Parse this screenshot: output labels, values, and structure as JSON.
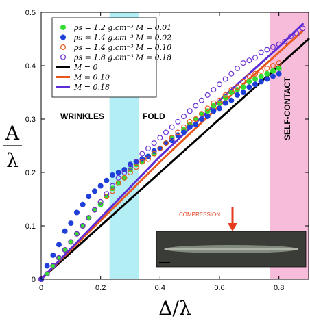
{
  "chart_data": {
    "type": "scatter",
    "xlabel": "Δ/λ",
    "ylabel": "A/λ",
    "xlim": [
      0,
      0.9
    ],
    "ylim": [
      0,
      0.5
    ],
    "xticks": [
      "0",
      "0.2",
      "0.4",
      "0.6",
      "0.8"
    ],
    "yticks": [
      "0",
      "0.1",
      "0.2",
      "0.3",
      "0.4",
      "0.5"
    ],
    "regions": [
      {
        "label": "WRINKLES",
        "color": "#a8ecf2"
      },
      {
        "label": "FOLD",
        "color": "#a8ecf2"
      },
      {
        "label": "SELF-CONTACT",
        "color": "#f7b6d6"
      }
    ],
    "shaded_bands": [
      {
        "name": "fold-band",
        "x": [
          0.23,
          0.33
        ],
        "color": "#b2eef4"
      },
      {
        "name": "self-contact-band",
        "x": [
          0.77,
          0.9
        ],
        "color": "#f7bcd9"
      }
    ],
    "inset_label": "COMPRESSION",
    "legend_position": "top-left",
    "grid": false,
    "series": [
      {
        "name": "ρs = 1.2 g.cm⁻³   M = 0.01",
        "kind": "marker",
        "filled": true,
        "color": "#33dd33",
        "x": [
          0.0,
          0.02,
          0.04,
          0.06,
          0.08,
          0.1,
          0.12,
          0.14,
          0.16,
          0.18,
          0.2,
          0.22,
          0.24,
          0.26,
          0.28,
          0.3,
          0.32,
          0.34,
          0.36,
          0.38,
          0.4,
          0.42,
          0.44,
          0.46,
          0.48,
          0.5,
          0.52,
          0.54,
          0.56,
          0.58,
          0.6,
          0.62,
          0.64,
          0.66,
          0.68,
          0.7,
          0.72,
          0.74,
          0.76,
          0.78,
          0.8
        ],
        "y": [
          0.0,
          0.01,
          0.025,
          0.04,
          0.055,
          0.07,
          0.085,
          0.1,
          0.115,
          0.13,
          0.14,
          0.155,
          0.17,
          0.18,
          0.19,
          0.205,
          0.215,
          0.22,
          0.23,
          0.235,
          0.245,
          0.255,
          0.265,
          0.27,
          0.28,
          0.29,
          0.3,
          0.31,
          0.315,
          0.325,
          0.33,
          0.34,
          0.35,
          0.355,
          0.36,
          0.37,
          0.375,
          0.38,
          0.385,
          0.39,
          0.395
        ]
      },
      {
        "name": "ρs = 1.4 g.cm⁻³   M = 0.02",
        "kind": "marker",
        "filled": true,
        "color": "#1f3fd9",
        "x": [
          0.0,
          0.02,
          0.04,
          0.06,
          0.08,
          0.1,
          0.12,
          0.14,
          0.16,
          0.18,
          0.2,
          0.22,
          0.24,
          0.26,
          0.28,
          0.3,
          0.32,
          0.34,
          0.36,
          0.38,
          0.4,
          0.42,
          0.44,
          0.46,
          0.48,
          0.5,
          0.52,
          0.54,
          0.56,
          0.58,
          0.6,
          0.62,
          0.64,
          0.66,
          0.68,
          0.7,
          0.72,
          0.74,
          0.76,
          0.78,
          0.8
        ],
        "y": [
          0.0,
          0.025,
          0.045,
          0.065,
          0.09,
          0.105,
          0.125,
          0.14,
          0.155,
          0.165,
          0.175,
          0.185,
          0.195,
          0.2,
          0.205,
          0.215,
          0.22,
          0.225,
          0.23,
          0.24,
          0.245,
          0.255,
          0.26,
          0.27,
          0.275,
          0.285,
          0.29,
          0.3,
          0.305,
          0.315,
          0.32,
          0.33,
          0.335,
          0.345,
          0.35,
          0.36,
          0.365,
          0.37,
          0.375,
          0.38,
          0.385
        ]
      },
      {
        "name": "ρs = 1.4 g.cm⁻³   M = 0.10",
        "kind": "marker",
        "filled": false,
        "color": "#e8581e",
        "x": [
          0.0,
          0.02,
          0.04,
          0.06,
          0.08,
          0.1,
          0.12,
          0.14,
          0.16,
          0.18,
          0.2,
          0.22,
          0.24,
          0.26,
          0.28,
          0.3,
          0.32,
          0.34,
          0.36,
          0.38,
          0.4,
          0.42,
          0.44,
          0.46,
          0.48,
          0.5,
          0.52,
          0.54,
          0.56,
          0.58,
          0.6,
          0.62,
          0.64,
          0.66,
          0.68,
          0.7,
          0.72,
          0.74,
          0.76,
          0.78,
          0.8
        ],
        "y": [
          0.0,
          0.01,
          0.025,
          0.04,
          0.055,
          0.07,
          0.085,
          0.1,
          0.115,
          0.13,
          0.145,
          0.155,
          0.165,
          0.18,
          0.19,
          0.2,
          0.21,
          0.22,
          0.225,
          0.235,
          0.245,
          0.255,
          0.265,
          0.275,
          0.285,
          0.295,
          0.3,
          0.31,
          0.32,
          0.33,
          0.335,
          0.345,
          0.355,
          0.36,
          0.37,
          0.38,
          0.385,
          0.39,
          0.395,
          0.4,
          0.405
        ]
      },
      {
        "name": "ρs = 1.8 g.cm⁻³   M = 0.18",
        "kind": "marker",
        "filled": false,
        "color": "#6a2fd1",
        "x": [
          0.0,
          0.02,
          0.04,
          0.06,
          0.08,
          0.1,
          0.12,
          0.14,
          0.16,
          0.18,
          0.2,
          0.22,
          0.24,
          0.26,
          0.28,
          0.3,
          0.32,
          0.34,
          0.36,
          0.38,
          0.4,
          0.42,
          0.44,
          0.46,
          0.48,
          0.5,
          0.52,
          0.54,
          0.56,
          0.58,
          0.6,
          0.62,
          0.64,
          0.66,
          0.68,
          0.7,
          0.72,
          0.74,
          0.76,
          0.78,
          0.8,
          0.82,
          0.84,
          0.86,
          0.88
        ],
        "y": [
          0.0,
          0.01,
          0.025,
          0.04,
          0.055,
          0.07,
          0.085,
          0.1,
          0.115,
          0.13,
          0.145,
          0.16,
          0.175,
          0.19,
          0.2,
          0.21,
          0.22,
          0.235,
          0.245,
          0.255,
          0.265,
          0.275,
          0.285,
          0.295,
          0.305,
          0.315,
          0.325,
          0.335,
          0.345,
          0.355,
          0.365,
          0.375,
          0.385,
          0.395,
          0.405,
          0.41,
          0.415,
          0.425,
          0.43,
          0.435,
          0.44,
          0.445,
          0.455,
          0.46,
          0.47
        ]
      },
      {
        "name": "M = 0",
        "kind": "line",
        "color": "#000000",
        "x": [
          0.0,
          0.9
        ],
        "y": [
          0.0,
          0.45
        ]
      },
      {
        "name": "M = 0.10",
        "kind": "line",
        "color": "#e8581e",
        "x": [
          0.0,
          0.2,
          0.4,
          0.6,
          0.8,
          0.88
        ],
        "y": [
          0.0,
          0.11,
          0.22,
          0.325,
          0.425,
          0.465
        ]
      },
      {
        "name": "M = 0.18",
        "kind": "line",
        "color": "#5b2bd6",
        "x": [
          0.0,
          0.2,
          0.4,
          0.6,
          0.8,
          0.88
        ],
        "y": [
          0.0,
          0.115,
          0.23,
          0.335,
          0.435,
          0.478
        ]
      }
    ]
  }
}
